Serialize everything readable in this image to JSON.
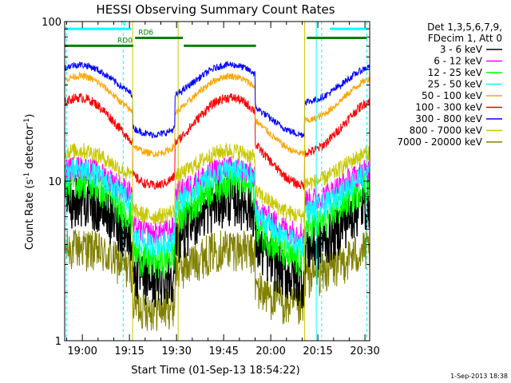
{
  "chart_data": {
    "type": "line",
    "title": "HESSI Observing Summary Count Rates",
    "xlabel": "Start Time (01-Sep-13 18:54:22)",
    "ylabel_main": "Count Rate (s",
    "ylabel_sup1": "-1",
    "ylabel_mid": " detector",
    "ylabel_sup2": "-1",
    "ylabel_end": ")",
    "yscale": "log",
    "ylim": [
      1,
      100
    ],
    "xlim_min": [
      54.37,
      151.5
    ],
    "x_ticks": [
      {
        "min": 60,
        "label": "19:00"
      },
      {
        "min": 75,
        "label": "19:15"
      },
      {
        "min": 90,
        "label": "19:30"
      },
      {
        "min": 105,
        "label": "19:45"
      },
      {
        "min": 120,
        "label": "20:00"
      },
      {
        "min": 135,
        "label": "20:15"
      },
      {
        "min": 150,
        "label": "20:30"
      }
    ],
    "y_ticks": [
      {
        "value": 1,
        "label": "1"
      },
      {
        "value": 10,
        "label": "10"
      },
      {
        "value": 100,
        "label": "100"
      }
    ],
    "legend_header": [
      "Det 1,3,5,6,7,9,",
      "FDecim 1, Att 0"
    ],
    "legend_position": "right",
    "series": [
      {
        "name": "3 - 6 keV",
        "color": "#000000",
        "base": 5.0,
        "amp": 2.0,
        "noise": 0.35
      },
      {
        "name": "6 - 12 keV",
        "color": "#ff00ff",
        "base": 9.0,
        "amp": 1.6,
        "noise": 0.18
      },
      {
        "name": "12 - 25 keV",
        "color": "#00ff00",
        "base": 6.5,
        "amp": 2.0,
        "noise": 0.25
      },
      {
        "name": "25 - 50 keV",
        "color": "#00ffff",
        "base": 8.0,
        "amp": 1.8,
        "noise": 0.18
      },
      {
        "name": "50 - 100 keV",
        "color": "#ffa500",
        "base": 30.0,
        "amp": 1.9,
        "noise": 0.05
      },
      {
        "name": "100 - 300 keV",
        "color": "#ff0000",
        "base": 20.0,
        "amp": 2.2,
        "noise": 0.07
      },
      {
        "name": "300 - 800 keV",
        "color": "#0000ff",
        "base": 38.0,
        "amp": 1.7,
        "noise": 0.05
      },
      {
        "name": "800 - 7000 keV",
        "color": "#c8c800",
        "base": 11.5,
        "amp": 1.6,
        "noise": 0.12
      },
      {
        "name": "7000 - 20000 keV",
        "color": "#808000",
        "base": 3.0,
        "amp": 1.5,
        "noise": 0.3
      }
    ],
    "gaps_min": [
      [
        76.0,
        89.5
      ],
      [
        115.0,
        130.8
      ]
    ],
    "dashed_vlines_min": [
      54.9,
      73.0,
      136.2,
      150.6
    ],
    "solid_vlines_min": [
      [
        76.0,
        "#c8c800"
      ],
      [
        90.5,
        "#c8c800"
      ],
      [
        130.8,
        "#c8c800"
      ],
      [
        134.5,
        "#00ffff"
      ]
    ],
    "flag_bars": [
      {
        "label": "N",
        "color": "#00ffff",
        "x0": 54.37,
        "x1": 75.5,
        "y": 90
      },
      {
        "label": "",
        "color": "#00ffff",
        "x0": 138.8,
        "x1": 150.5,
        "y": 90
      },
      {
        "label": "RD0",
        "color": "#008000",
        "x0": 54.37,
        "x1": 76.2,
        "y": 70.5
      },
      {
        "label": "RD6",
        "color": "#008000",
        "x0": 76.8,
        "x1": 92.0,
        "y": 79
      },
      {
        "label": "",
        "color": "#008000",
        "x0": 92.3,
        "x1": 115.3,
        "y": 70.5
      },
      {
        "label": "",
        "color": "#008000",
        "x0": 131.5,
        "x1": 150.5,
        "y": 79
      }
    ],
    "footer_date": "1-Sep-2013 18:38"
  }
}
